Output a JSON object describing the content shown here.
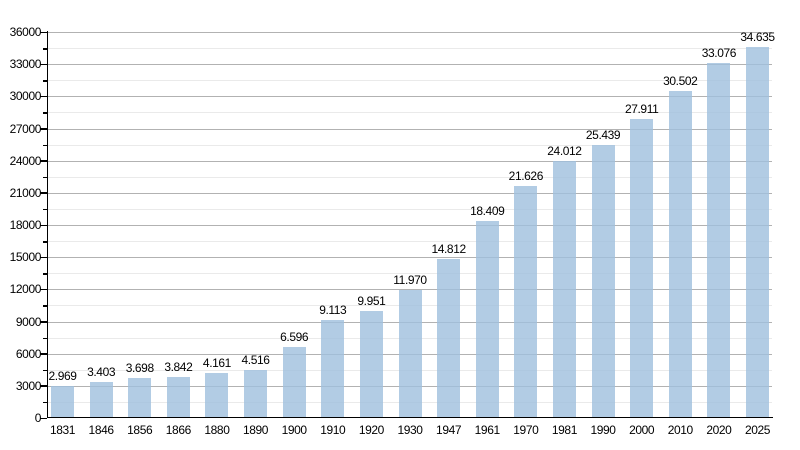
{
  "chart_data": {
    "type": "bar",
    "title": "",
    "xlabel": "",
    "ylabel": "",
    "categories": [
      "1831",
      "1846",
      "1856",
      "1866",
      "1880",
      "1890",
      "1900",
      "1910",
      "1920",
      "1930",
      "1947",
      "1961",
      "1970",
      "1981",
      "1990",
      "2000",
      "2010",
      "2020",
      "2025"
    ],
    "values": [
      2969,
      3403,
      3698,
      3842,
      4161,
      4516,
      6596,
      9113,
      9951,
      11970,
      14812,
      18409,
      21626,
      24012,
      25439,
      27911,
      30502,
      33076,
      34635
    ],
    "value_labels": [
      "2.969",
      "3.403",
      "3.698",
      "3.842",
      "4.161",
      "4.516",
      "6.596",
      "9.113",
      "9.951",
      "11.970",
      "14.812",
      "18.409",
      "21.626",
      "24.012",
      "25.439",
      "27.911",
      "30.502",
      "33.076",
      "34.635"
    ],
    "ylim": [
      0,
      36000
    ],
    "ytick_step": 3000,
    "ytick_minor_step": 1500,
    "ytick_labels": [
      "0",
      "3000",
      "6000",
      "9000",
      "12000",
      "15000",
      "18000",
      "21000",
      "24000",
      "27000",
      "30000",
      "33000",
      "36000"
    ],
    "grid": "major and minor horizontal gridlines",
    "legend_position": "none",
    "colors": {
      "bar_fill": "#9fbfdd",
      "bar_fill_opacity": 0.8,
      "major_gridline": "#b2b2b2",
      "minor_gridline": "#eaeaea",
      "axis": "#000000",
      "text": "#000000",
      "background": "#ffffff"
    }
  }
}
